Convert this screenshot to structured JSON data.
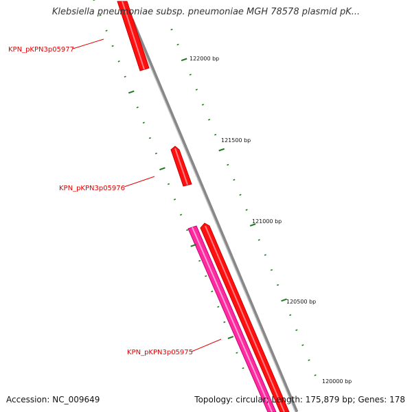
{
  "header": {
    "title": "Klebsiella pneumoniae subsp. pneumoniae MGH 78578 plasmid pK..."
  },
  "footer": {
    "accession": "Accession: NC_009649",
    "summary": "Topology: circular; Length: 175,879 bp; Genes: 178"
  },
  "map": {
    "colors": {
      "backbone": "#888888",
      "forward_gene": "#ff0000",
      "reverse_gene": "#ff3399",
      "tick": "#1a7a1a",
      "label": "#e00000"
    },
    "ticks": [
      {
        "label": "122000 bp"
      },
      {
        "label": "121500 bp"
      },
      {
        "label": "121000 bp"
      },
      {
        "label": "120500 bp"
      },
      {
        "label": "120000 bp"
      }
    ],
    "genes": [
      {
        "label": "KPN_pKPN3p05977",
        "color": "red"
      },
      {
        "label": "KPN_pKPN3p05976",
        "color": "red"
      },
      {
        "label": "KPN_pKPN3p05975",
        "color": "pink"
      }
    ]
  }
}
